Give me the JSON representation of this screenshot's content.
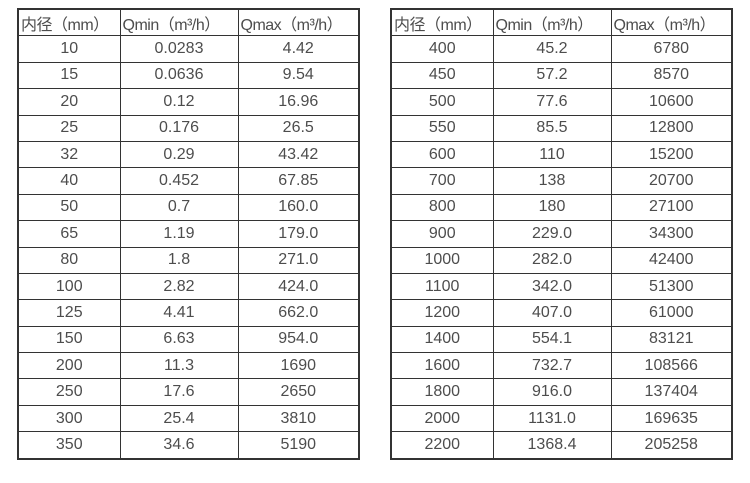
{
  "colors": {
    "border": "#333333",
    "text": "#4d4d4d",
    "background": "#ffffff"
  },
  "chart_data": [
    {
      "type": "table",
      "title": "",
      "columns": [
        "内径（mm）",
        "Qmin（m³/h）",
        "Qmax（m³/h）"
      ],
      "rows": [
        [
          "10",
          "0.0283",
          "4.42"
        ],
        [
          "15",
          "0.0636",
          "9.54"
        ],
        [
          "20",
          "0.12",
          "16.96"
        ],
        [
          "25",
          "0.176",
          "26.5"
        ],
        [
          "32",
          "0.29",
          "43.42"
        ],
        [
          "40",
          "0.452",
          "67.85"
        ],
        [
          "50",
          "0.7",
          "160.0"
        ],
        [
          "65",
          "1.19",
          "179.0"
        ],
        [
          "80",
          "1.8",
          "271.0"
        ],
        [
          "100",
          "2.82",
          "424.0"
        ],
        [
          "125",
          "4.41",
          "662.0"
        ],
        [
          "150",
          "6.63",
          "954.0"
        ],
        [
          "200",
          "11.3",
          "1690"
        ],
        [
          "250",
          "17.6",
          "2650"
        ],
        [
          "300",
          "25.4",
          "3810"
        ],
        [
          "350",
          "34.6",
          "5190"
        ]
      ]
    },
    {
      "type": "table",
      "title": "",
      "columns": [
        "内径（mm）",
        "Qmin（m³/h）",
        "Qmax（m³/h）"
      ],
      "rows": [
        [
          "400",
          "45.2",
          "6780"
        ],
        [
          "450",
          "57.2",
          "8570"
        ],
        [
          "500",
          "77.6",
          "10600"
        ],
        [
          "550",
          "85.5",
          "12800"
        ],
        [
          "600",
          "110",
          "15200"
        ],
        [
          "700",
          "138",
          "20700"
        ],
        [
          "800",
          "180",
          "27100"
        ],
        [
          "900",
          "229.0",
          "34300"
        ],
        [
          "1000",
          "282.0",
          "42400"
        ],
        [
          "1100",
          "342.0",
          "51300"
        ],
        [
          "1200",
          "407.0",
          "61000"
        ],
        [
          "1400",
          "554.1",
          "83121"
        ],
        [
          "1600",
          "732.7",
          "108566"
        ],
        [
          "1800",
          "916.0",
          "137404"
        ],
        [
          "2000",
          "1131.0",
          "169635"
        ],
        [
          "2200",
          "1368.4",
          "205258"
        ]
      ]
    }
  ]
}
